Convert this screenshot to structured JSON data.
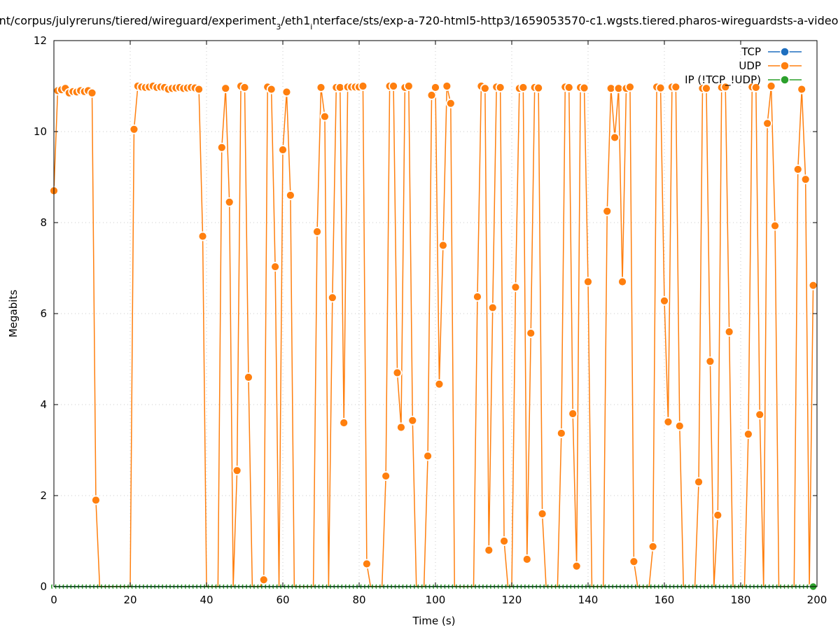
{
  "chart_data": {
    "type": "line",
    "title_parts": [
      "nt/corpus/julyreruns/tiered/wireguard/experiment",
      "3",
      "/eth1",
      "i",
      "nterface/sts/exp-a-720-html5-http3/1659053570-c1.wgsts.tiered.pharos-wireguardsts-a-video"
    ],
    "xlabel": "Time (s)",
    "ylabel": "Megabits",
    "xlim": [
      0,
      200
    ],
    "ylim": [
      0,
      12
    ],
    "xticks": [
      0,
      20,
      40,
      60,
      80,
      100,
      120,
      140,
      160,
      180,
      200
    ],
    "yticks": [
      0,
      2,
      4,
      6,
      8,
      10,
      12
    ],
    "grid": true,
    "legend_position": "top-right",
    "series": [
      {
        "name": "TCP",
        "color": "#1f6fbf",
        "values": "zero",
        "visible_points": false
      },
      {
        "name": "UDP",
        "color": "#ff7f0e",
        "values": [
          8.7,
          10.9,
          10.92,
          10.95,
          10.85,
          10.88,
          10.87,
          10.9,
          10.88,
          10.9,
          10.85,
          1.9,
          0,
          0,
          0,
          0,
          0,
          0,
          0,
          0,
          0,
          10.05,
          11.0,
          10.98,
          10.97,
          10.98,
          11.0,
          10.97,
          10.98,
          10.97,
          10.93,
          10.95,
          10.96,
          10.97,
          10.95,
          10.96,
          10.97,
          10.96,
          10.93,
          7.7,
          0,
          0,
          0,
          0,
          9.65,
          10.95,
          8.45,
          0,
          2.55,
          11.0,
          10.97,
          4.6,
          0,
          0,
          0,
          0.15,
          10.98,
          10.93,
          7.03,
          0,
          9.6,
          10.87,
          8.6,
          0,
          0,
          0,
          0,
          0,
          0,
          7.8,
          10.97,
          10.33,
          0,
          6.35,
          10.97,
          10.97,
          3.6,
          10.98,
          10.98,
          10.98,
          10.98,
          11.0,
          0.5,
          0,
          0,
          0,
          0,
          2.43,
          11.0,
          11.0,
          4.7,
          3.5,
          10.97,
          11.0,
          3.65,
          0,
          0,
          0,
          2.87,
          10.8,
          10.97,
          4.45,
          7.5,
          11.0,
          10.62,
          0,
          0,
          0,
          0,
          0,
          0,
          6.37,
          11.0,
          10.95,
          0.8,
          6.13,
          10.98,
          10.97,
          1.0,
          0,
          0,
          6.58,
          10.95,
          10.97,
          0.6,
          5.57,
          10.97,
          10.96,
          1.6,
          0,
          0,
          0,
          0,
          3.37,
          10.98,
          10.97,
          3.8,
          0.45,
          10.97,
          10.96,
          6.7,
          0,
          0,
          0,
          0,
          8.25,
          10.95,
          9.87,
          10.95,
          6.7,
          10.95,
          10.98,
          0.55,
          0,
          0,
          0,
          0,
          0.88,
          10.98,
          10.96,
          6.28,
          3.62,
          10.98,
          10.98,
          3.53,
          0,
          0,
          0,
          0,
          2.3,
          10.95,
          10.95,
          4.95,
          0,
          1.57,
          10.97,
          10.98,
          5.6,
          0,
          0,
          0,
          0,
          3.35,
          10.98,
          10.97,
          3.78,
          0,
          10.18,
          11.0,
          7.93,
          0,
          0,
          0,
          0,
          0,
          9.17,
          10.93,
          8.95,
          0,
          6.62
        ]
      },
      {
        "name": "IP (!TCP_!UDP)",
        "color": "#2ca02c",
        "values": "zero",
        "visible_points": true
      }
    ]
  }
}
